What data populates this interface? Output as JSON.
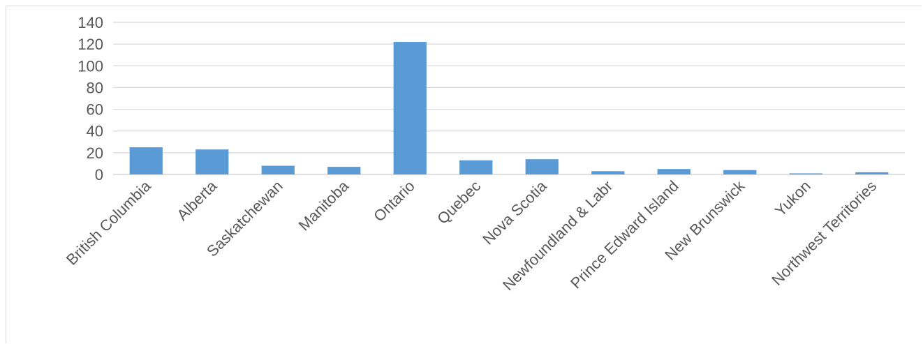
{
  "chart_data": {
    "type": "bar",
    "categories": [
      "British Columbia",
      "Alberta",
      "Saskatchewan",
      "Manitoba",
      "Ontario",
      "Quebec",
      "Nova Scotia",
      "Newfoundland & Labr",
      "Prince Edward Island",
      "New Brunswick",
      "Yukon",
      "Northwest Territories"
    ],
    "values": [
      25,
      23,
      8,
      7,
      122,
      13,
      14,
      3,
      5,
      4,
      1,
      2
    ],
    "yticks": [
      "0",
      "20",
      "40",
      "60",
      "80",
      "100",
      "120",
      "140"
    ],
    "ylim": [
      0,
      140
    ],
    "grid": true,
    "legend": "none",
    "bar_color": "#5b9bd5",
    "grid_color": "#d9d9d9"
  }
}
